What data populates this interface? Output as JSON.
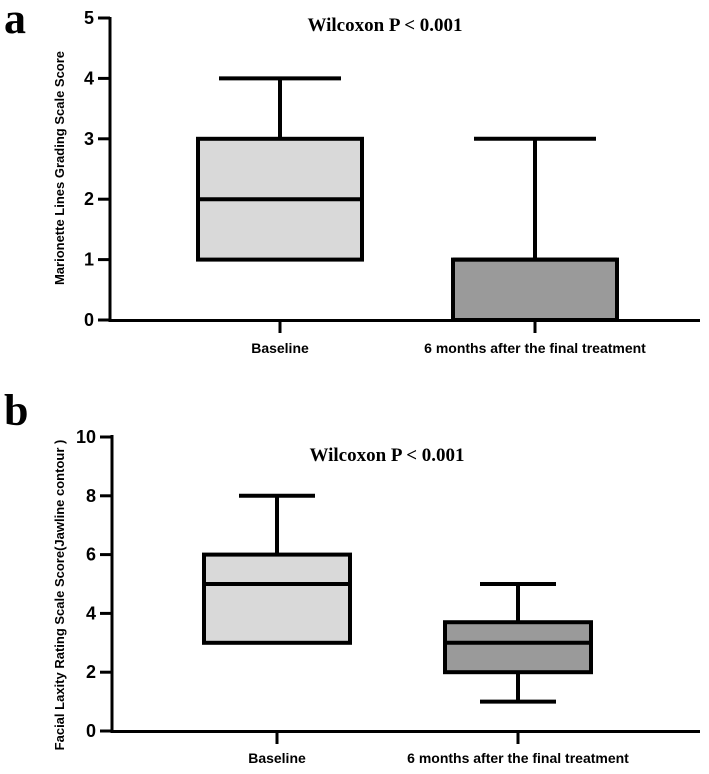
{
  "chart_data": [
    {
      "type": "box",
      "panel": "a",
      "annotation": "Wilcoxon P < 0.001",
      "xlabel": "",
      "ylabel": "Marionette Lines Grading Scale Score",
      "ylim": [
        0,
        5
      ],
      "yticks": [
        0,
        1,
        2,
        3,
        4,
        5
      ],
      "categories": [
        "Baseline",
        "6 months after the final treatment"
      ],
      "boxes": [
        {
          "min": 1,
          "q1": 1,
          "median": 2,
          "q3": 3,
          "max": 4,
          "fill": "#d9d9d9"
        },
        {
          "min": 0,
          "q1": 0,
          "median": 1,
          "q3": 1,
          "max": 3,
          "fill": "#9a9a9a"
        }
      ]
    },
    {
      "type": "box",
      "panel": "b",
      "annotation": "Wilcoxon P < 0.001",
      "xlabel": "",
      "ylabel": "Facial Laxity Rating Scale Score(Jawline contour )",
      "ylim": [
        0,
        10
      ],
      "yticks": [
        0,
        2,
        4,
        6,
        8,
        10
      ],
      "categories": [
        "Baseline",
        "6 months after the final treatment"
      ],
      "boxes": [
        {
          "min": 3,
          "q1": 3,
          "median": 5,
          "q3": 6,
          "max": 8,
          "fill": "#d9d9d9"
        },
        {
          "min": 1,
          "q1": 2,
          "median": 3,
          "q3": 3.7,
          "max": 5,
          "fill": "#9a9a9a"
        }
      ]
    }
  ]
}
